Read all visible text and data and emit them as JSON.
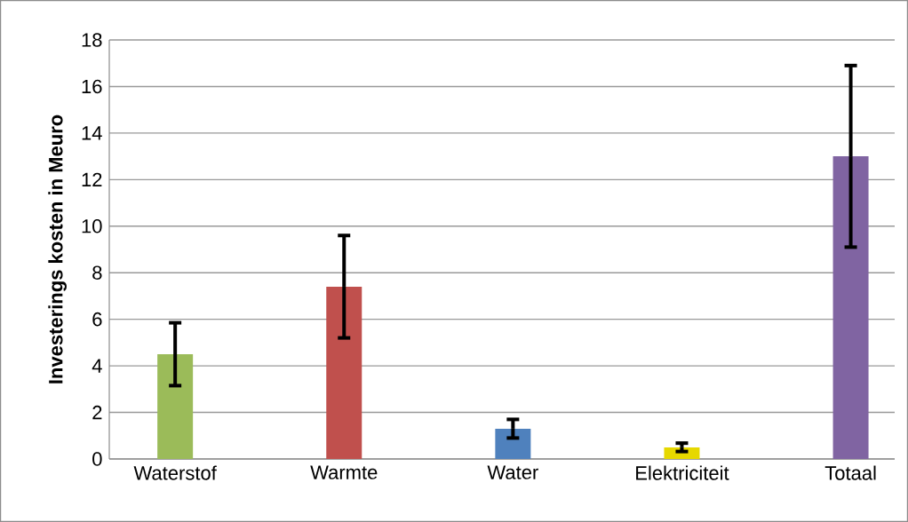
{
  "chart_data": {
    "type": "bar",
    "ylabel": "Investerings kosten in Meuro",
    "categories": [
      "Waterstof",
      "Warmte",
      "Water",
      "Elektriciteit",
      "Totaal"
    ],
    "values": [
      4.5,
      7.4,
      1.3,
      0.5,
      13.0
    ],
    "errors": [
      1.35,
      2.2,
      0.4,
      0.18,
      3.9
    ],
    "colors": [
      "#9bbb59",
      "#c0504d",
      "#4f81bd",
      "#e6d800",
      "#8064a2"
    ],
    "ylim": [
      0,
      18
    ],
    "yticks": [
      0,
      2,
      4,
      6,
      8,
      10,
      12,
      14,
      16,
      18
    ],
    "grid": "y"
  }
}
